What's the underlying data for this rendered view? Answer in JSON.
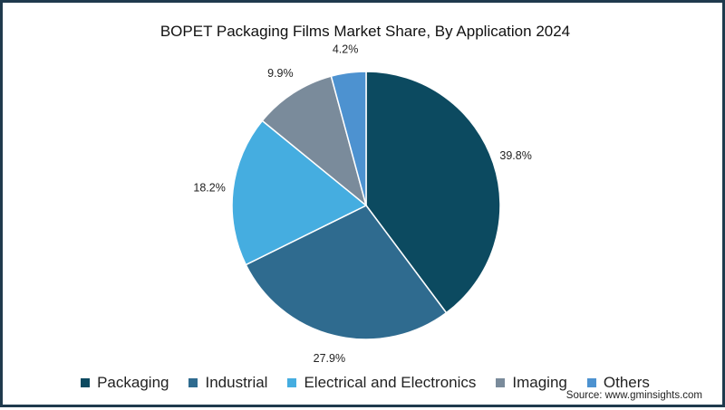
{
  "chart_data": {
    "type": "pie",
    "title": "BOPET Packaging Films Market Share, By Application 2024",
    "slices": [
      {
        "name": "Packaging",
        "value": 39.8,
        "label": "39.8%",
        "color": "#0c4a60"
      },
      {
        "name": "Industrial",
        "value": 27.9,
        "label": "27.9%",
        "color": "#2f6b8f"
      },
      {
        "name": "Electrical and Electronics",
        "value": 18.2,
        "label": "18.2%",
        "color": "#45ade0"
      },
      {
        "name": "Imaging",
        "value": 9.9,
        "label": "9.9%",
        "color": "#7a8b9b"
      },
      {
        "name": "Others",
        "value": 4.2,
        "label": "4.2%",
        "color": "#4d92d0"
      }
    ],
    "legend_position": "bottom",
    "start": "top, clockwise"
  },
  "source": "Source: www.gminsights.com"
}
